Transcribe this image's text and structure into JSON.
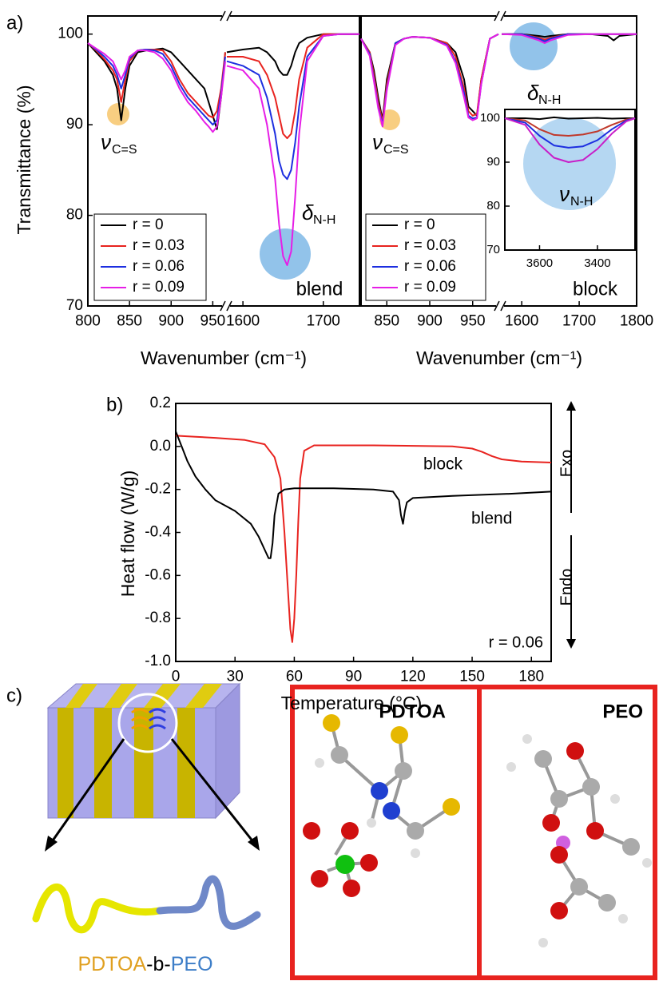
{
  "panel_labels": [
    "a)",
    "b)",
    "c)"
  ],
  "chart_data": [
    {
      "type": "line",
      "label": "blend",
      "xlabel": "Wavenumber (cm⁻¹)",
      "ylabel": "Transmittance (%)",
      "x_segments": [
        {
          "xlim": [
            800,
            965
          ],
          "xticks": [
            800,
            850,
            900,
            950
          ]
        },
        {
          "xlim": [
            1580,
            1745
          ],
          "xticks": [
            1600,
            1700
          ]
        }
      ],
      "ylim": [
        70,
        102
      ],
      "yticks": [
        70,
        80,
        90,
        100
      ],
      "x": [
        800,
        810,
        820,
        830,
        835,
        840,
        845,
        850,
        860,
        870,
        880,
        890,
        900,
        910,
        920,
        930,
        940,
        945,
        950,
        955,
        960,
        965,
        1580,
        1600,
        1620,
        1630,
        1640,
        1645,
        1650,
        1655,
        1660,
        1665,
        1670,
        1680,
        1700,
        1720,
        1745
      ],
      "series": [
        {
          "name": "r = 0",
          "color": "#000000",
          "values": [
            99,
            98,
            97,
            95.5,
            94,
            90.5,
            94,
            96.5,
            98,
            98.2,
            98.3,
            98.4,
            98,
            97,
            96,
            95,
            94,
            92.5,
            91,
            89.5,
            93,
            98,
            98,
            98.3,
            98.5,
            98,
            97,
            96,
            95.5,
            95.5,
            96.5,
            98,
            99,
            99.6,
            100,
            100,
            100
          ]
        },
        {
          "name": "r = 0.03",
          "color": "#e8231f",
          "values": [
            99,
            98.2,
            97.2,
            96,
            95,
            92.5,
            95,
            97,
            98.2,
            98.3,
            98.3,
            98.2,
            97,
            95,
            93.5,
            92.5,
            91.5,
            91,
            90.8,
            91.5,
            94,
            98,
            97.5,
            97.5,
            97,
            95.5,
            93,
            91,
            89,
            88.5,
            89,
            91.5,
            95,
            98.5,
            100,
            100,
            100
          ]
        },
        {
          "name": "r = 0.06",
          "color": "#1d2fe0",
          "values": [
            99,
            98.3,
            97.5,
            96.5,
            95.5,
            94,
            95.5,
            97.3,
            98.2,
            98.3,
            98.2,
            97.8,
            96.5,
            94.5,
            93,
            92,
            91,
            90.5,
            90,
            90.5,
            93.5,
            97.5,
            97,
            96.5,
            95.5,
            93,
            89,
            86,
            84.5,
            84,
            85,
            88,
            92,
            97.5,
            99.8,
            100,
            100
          ]
        },
        {
          "name": "r = 0.09",
          "color": "#e61ee6",
          "values": [
            99,
            98.4,
            97.8,
            97,
            96,
            95,
            96,
            97.5,
            98.2,
            98.2,
            98,
            97.3,
            96,
            94,
            92.5,
            91.5,
            90.3,
            89.8,
            89.2,
            89.8,
            93,
            97,
            96.5,
            96,
            94,
            90,
            84,
            79,
            75.5,
            74.5,
            76,
            82,
            89,
            97,
            99.8,
            100,
            100
          ]
        }
      ],
      "annotations": [
        {
          "text": "ν",
          "sub": "C=S"
        },
        {
          "text": "δ",
          "sub": "N-H"
        }
      ]
    },
    {
      "type": "line",
      "label": "block",
      "xlabel": "Wavenumber (cm⁻¹)",
      "x_segments": [
        {
          "xlim": [
            820,
            980
          ],
          "xticks": [
            850,
            900,
            950
          ]
        },
        {
          "xlim": [
            1565,
            1800
          ],
          "xticks": [
            1600,
            1700,
            1800
          ]
        }
      ],
      "ylim": [
        70,
        102
      ],
      "x": [
        820,
        830,
        835,
        840,
        845,
        850,
        860,
        870,
        880,
        900,
        920,
        930,
        940,
        945,
        950,
        955,
        960,
        970,
        980,
        1565,
        1600,
        1630,
        1640,
        1650,
        1680,
        1720,
        1750,
        1760,
        1770,
        1800
      ],
      "series": [
        {
          "name": "r = 0",
          "color": "#000000",
          "values": [
            99.5,
            98,
            96,
            93,
            90.5,
            95,
            99,
            99.5,
            99.7,
            99.6,
            99,
            98,
            95,
            92,
            91.5,
            91,
            95,
            99.5,
            100,
            100,
            100,
            99.8,
            99.7,
            99.8,
            100,
            100,
            99.8,
            99.3,
            99.8,
            100
          ]
        },
        {
          "name": "r = 0.03",
          "color": "#e8231f",
          "values": [
            99.5,
            98,
            95.5,
            92.5,
            90.3,
            94.5,
            99,
            99.5,
            99.7,
            99.6,
            99,
            97.5,
            94,
            91.5,
            91,
            91.2,
            95,
            99.5,
            100,
            100,
            100,
            99.6,
            99.4,
            99.6,
            100,
            100,
            100,
            100,
            100,
            100
          ]
        },
        {
          "name": "r = 0.06",
          "color": "#1d2fe0",
          "values": [
            99.5,
            97.8,
            95,
            92,
            90,
            94,
            99,
            99.5,
            99.7,
            99.6,
            98.8,
            97,
            93.5,
            91,
            90.7,
            90.8,
            94.5,
            99.5,
            100,
            100,
            100,
            99.5,
            99.2,
            99.5,
            100,
            100,
            100,
            100,
            100,
            100
          ]
        },
        {
          "name": "r = 0.09",
          "color": "#e61ee6",
          "values": [
            99.5,
            97.6,
            94.8,
            91.8,
            89.8,
            93.8,
            98.8,
            99.5,
            99.7,
            99.6,
            98.7,
            96.8,
            93,
            90.8,
            90.5,
            90.7,
            94.5,
            99.5,
            100,
            100,
            99.9,
            99.3,
            99,
            99.3,
            99.9,
            100,
            100,
            100,
            100,
            100
          ]
        }
      ],
      "annotations": [
        {
          "text": "ν",
          "sub": "C=S"
        },
        {
          "text": "δ",
          "sub": "N-H"
        }
      ]
    },
    {
      "type": "line",
      "xlim": [
        3720,
        3270
      ],
      "xticks": [
        3600,
        3400
      ],
      "ylim": [
        70,
        102
      ],
      "yticks": [
        70,
        80,
        90,
        100
      ],
      "x": [
        3720,
        3650,
        3600,
        3550,
        3500,
        3450,
        3400,
        3350,
        3300,
        3270
      ],
      "series": [
        {
          "color": "#000000",
          "values": [
            100,
            100,
            99.8,
            100.2,
            99.9,
            100,
            100.1,
            99.9,
            100,
            100
          ]
        },
        {
          "color": "#c0392b",
          "values": [
            100,
            99.5,
            97.5,
            96.2,
            96,
            96.3,
            97,
            98.5,
            99.7,
            100
          ]
        },
        {
          "color": "#1d2fe0",
          "values": [
            100,
            99,
            96,
            93.8,
            93.3,
            93.6,
            95,
            97.5,
            99.5,
            100
          ]
        },
        {
          "color": "#c81ec8",
          "values": [
            100,
            98.5,
            94,
            91,
            90,
            90.5,
            93,
            96.5,
            99.3,
            100
          ]
        }
      ],
      "annotations": [
        {
          "text": "ν",
          "sub": "N-H"
        }
      ]
    },
    {
      "type": "line",
      "xlabel": "Temperature (°C)",
      "ylabel": "Heat flow (W/g)",
      "xlim": [
        0,
        190
      ],
      "xticks": [
        0,
        30,
        60,
        90,
        120,
        150,
        180
      ],
      "ylim": [
        -1.0,
        0.2
      ],
      "yticks": [
        {
          "value": -1.0,
          "label": "-1.0"
        },
        -0.8,
        -0.6,
        -0.4,
        -0.2,
        {
          "value": 0,
          "label": "0.0"
        },
        0.2
      ],
      "series": [
        {
          "name": "block",
          "color": "#e8231f",
          "x": [
            0,
            10,
            20,
            35,
            45,
            50,
            53,
            55,
            57,
            58,
            59,
            60,
            61,
            62,
            63,
            65,
            70,
            100,
            140,
            150,
            155,
            160,
            165,
            175,
            190
          ],
          "values": [
            0.05,
            0.045,
            0.04,
            0.03,
            0.01,
            -0.05,
            -0.15,
            -0.4,
            -0.7,
            -0.85,
            -0.91,
            -0.8,
            -0.6,
            -0.35,
            -0.15,
            -0.02,
            0.005,
            0.005,
            0.0,
            -0.01,
            -0.025,
            -0.045,
            -0.06,
            -0.07,
            -0.075
          ]
        },
        {
          "name": "blend",
          "color": "#000000",
          "x": [
            0,
            3,
            6,
            10,
            15,
            20,
            30,
            38,
            42,
            45,
            47,
            48,
            49,
            50,
            52,
            55,
            60,
            80,
            100,
            110,
            113,
            114,
            115,
            116,
            117,
            120,
            140,
            170,
            190
          ],
          "values": [
            0.07,
            0.0,
            -0.07,
            -0.14,
            -0.2,
            -0.25,
            -0.3,
            -0.36,
            -0.42,
            -0.48,
            -0.52,
            -0.52,
            -0.45,
            -0.32,
            -0.22,
            -0.2,
            -0.195,
            -0.195,
            -0.2,
            -0.21,
            -0.25,
            -0.32,
            -0.36,
            -0.3,
            -0.26,
            -0.24,
            -0.23,
            -0.22,
            -0.21
          ]
        }
      ],
      "annotations": [
        {
          "text": "r = 0.06"
        },
        {
          "text": "Exo"
        },
        {
          "text": "Endo"
        }
      ]
    }
  ],
  "diagram": {
    "chain_label": [
      "PDTOA",
      "-b-",
      "PEO"
    ],
    "boxes": [
      "PDTOA",
      "PEO"
    ]
  }
}
